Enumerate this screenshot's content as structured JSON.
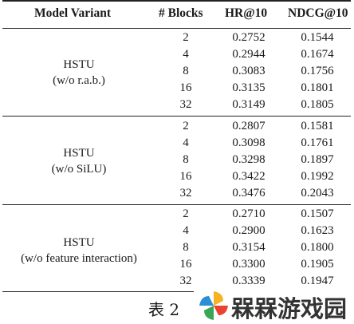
{
  "table": {
    "headers": {
      "variant": "Model Variant",
      "blocks": "# Blocks",
      "hr": "HR@10",
      "ndcg": "NDCG@10"
    },
    "groups": [
      {
        "name": "HSTU",
        "detail": "(w/o r.a.b.)",
        "rows": [
          {
            "blocks": "2",
            "hr": "0.2752",
            "ndcg": "0.1544"
          },
          {
            "blocks": "4",
            "hr": "0.2944",
            "ndcg": "0.1674"
          },
          {
            "blocks": "8",
            "hr": "0.3083",
            "ndcg": "0.1756"
          },
          {
            "blocks": "16",
            "hr": "0.3135",
            "ndcg": "0.1801"
          },
          {
            "blocks": "32",
            "hr": "0.3149",
            "ndcg": "0.1805"
          }
        ]
      },
      {
        "name": "HSTU",
        "detail": "(w/o SiLU)",
        "rows": [
          {
            "blocks": "2",
            "hr": "0.2807",
            "ndcg": "0.1581"
          },
          {
            "blocks": "4",
            "hr": "0.3098",
            "ndcg": "0.1761"
          },
          {
            "blocks": "8",
            "hr": "0.3298",
            "ndcg": "0.1897"
          },
          {
            "blocks": "16",
            "hr": "0.3422",
            "ndcg": "0.1992"
          },
          {
            "blocks": "32",
            "hr": "0.3476",
            "ndcg": "0.2043"
          }
        ]
      },
      {
        "name": "HSTU",
        "detail": "(w/o feature interaction)",
        "rows": [
          {
            "blocks": "2",
            "hr": "0.2710",
            "ndcg": "0.1507"
          },
          {
            "blocks": "4",
            "hr": "0.2900",
            "ndcg": "0.1623"
          },
          {
            "blocks": "8",
            "hr": "0.3154",
            "ndcg": "0.1800"
          },
          {
            "blocks": "16",
            "hr": "0.3300",
            "ndcg": "0.1905"
          },
          {
            "blocks": "32",
            "hr": "0.3339",
            "ndcg": "0.1947"
          }
        ]
      }
    ]
  },
  "caption": "表 2",
  "watermark": {
    "text": "槑槑游戏园",
    "colors": [
      "#f5b324",
      "#e8432e",
      "#3aa655",
      "#2c8fd6"
    ]
  }
}
